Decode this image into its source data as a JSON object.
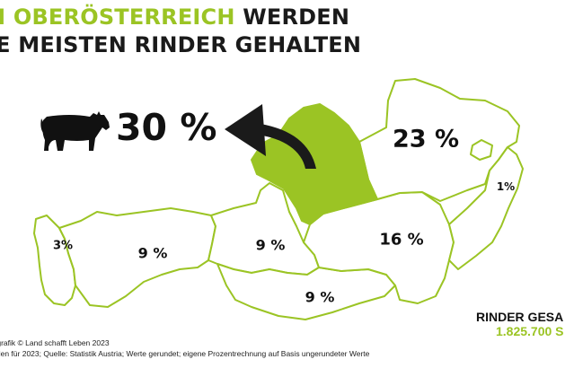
{
  "headline": {
    "line1_green": "N OBERÖSTERREICH",
    "line1_rest": " WERDEN",
    "line2": "IE MEISTEN RINDER GEHALTEN"
  },
  "highlight": {
    "value": "30 %",
    "icon": "cow-icon"
  },
  "regions": [
    {
      "name": "vorarlberg",
      "label": "3%",
      "highlighted": false
    },
    {
      "name": "tirol",
      "label": "9 %",
      "highlighted": false
    },
    {
      "name": "salzburg",
      "label": "9 %",
      "highlighted": false
    },
    {
      "name": "kaernten",
      "label": "9 %",
      "highlighted": false
    },
    {
      "name": "steiermark",
      "label": "16 %",
      "highlighted": false
    },
    {
      "name": "oberoesterreich",
      "label": "",
      "highlighted": true
    },
    {
      "name": "niederoesterreich",
      "label": "23 %",
      "highlighted": false
    },
    {
      "name": "burgenland",
      "label": "",
      "highlighted": false
    },
    {
      "name": "wien",
      "label": "",
      "highlighted": false
    }
  ],
  "extra_labels": {
    "east_small": "1%"
  },
  "total": {
    "label": "RINDER GESA",
    "value": "1.825.700 S"
  },
  "footer": {
    "credit": "/grafik © Land schafft Leben 2023",
    "note": "hlen für 2023; Quelle: Statistik Austria; Werte gerundet; eigene Prozentrechnung auf Basis ungerundeter Werte"
  },
  "colors": {
    "accent": "#9bc424",
    "outline": "#9bc424",
    "text": "#111111"
  }
}
